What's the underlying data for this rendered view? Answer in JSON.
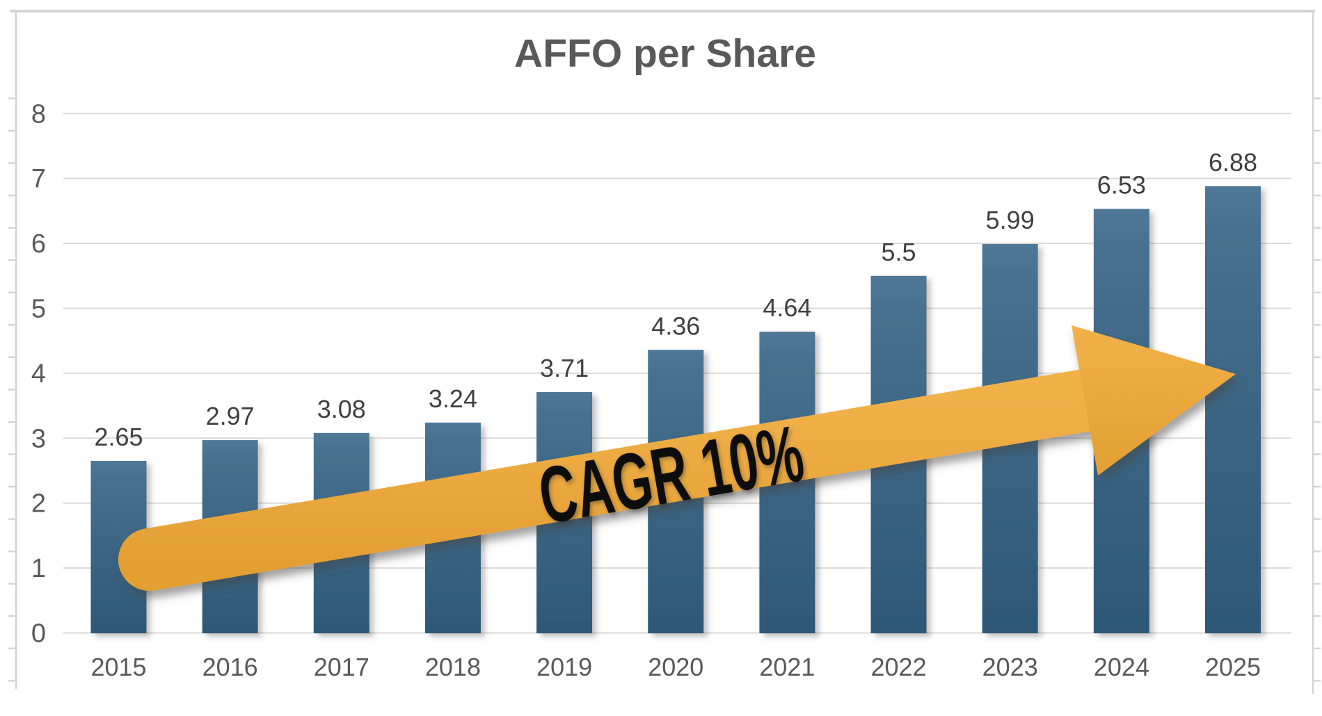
{
  "chart_data": {
    "type": "bar",
    "title": "AFFO per Share",
    "categories": [
      "2015",
      "2016",
      "2017",
      "2018",
      "2019",
      "2020",
      "2021",
      "2022",
      "2023",
      "2024",
      "2025"
    ],
    "values": [
      2.65,
      2.97,
      3.08,
      3.24,
      3.71,
      4.36,
      4.64,
      5.5,
      5.99,
      6.53,
      6.88
    ],
    "data_labels": [
      "2.65",
      "2.97",
      "3.08",
      "3.24",
      "3.71",
      "4.36",
      "4.64",
      "5.5",
      "5.99",
      "6.53",
      "6.88"
    ],
    "y_ticks": [
      "0",
      "1",
      "2",
      "3",
      "4",
      "5",
      "6",
      "7",
      "8"
    ],
    "ylim": [
      0,
      8
    ],
    "grid": true,
    "legend": false,
    "annotation": {
      "text": "CAGR 10%"
    },
    "colors": {
      "bar_top": "#507896",
      "bar_mid": "#47708E",
      "bar_bottom": "#2E5876",
      "arrow_light": "#F1B149",
      "arrow_dark": "#E39F33",
      "grid": "#D9D9D9",
      "axis_line": "#D4D4D4",
      "axis_text": "#595959",
      "data_label_text": "#3F3F3F",
      "title_text": "#595959",
      "annotation_text": "#0D0D0D"
    }
  }
}
